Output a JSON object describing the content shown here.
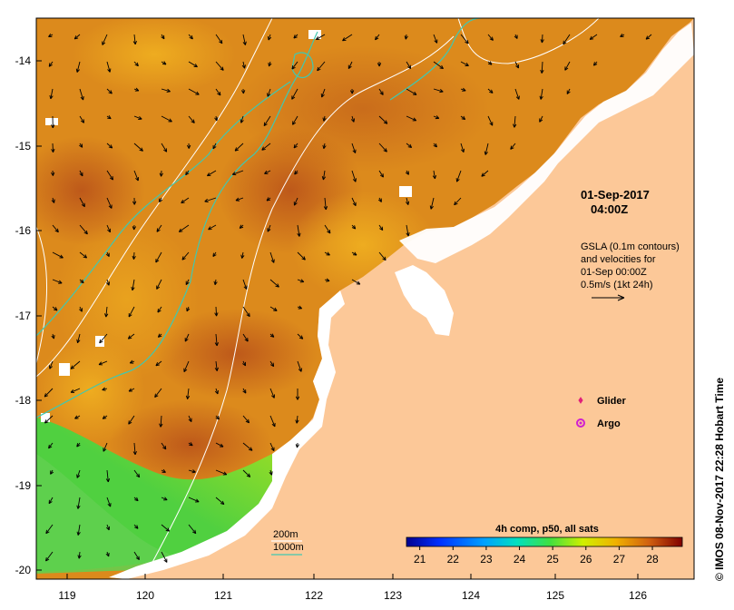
{
  "map": {
    "y_axis_labels": [
      "-14",
      "-15",
      "-16",
      "-17",
      "-18",
      "-19",
      "-20"
    ],
    "x_axis_labels": [
      "119",
      "120",
      "121",
      "122",
      "123",
      "124",
      "125",
      "126"
    ],
    "date_label": "01-Sep-2017",
    "time_label": "04:00Z",
    "gsla_lines": [
      "GSLA (0.1m contours)",
      "and velocities for",
      "01-Sep 00:00Z",
      "0.5m/s (1kt 24h)"
    ],
    "legend": {
      "glider_label": "Glider",
      "argo_label": "Argo",
      "glider_color": "#e0207a",
      "argo_color": "#d020d0"
    },
    "depth_legend": {
      "line_200_label": "200m",
      "line_1000_label": "1000m",
      "line_200_color": "#ffffff",
      "line_1000_color": "#40c8b0"
    },
    "colorbar": {
      "title": "4h comp, p50, all sats",
      "ticks": [
        "21",
        "22",
        "23",
        "24",
        "25",
        "26",
        "27",
        "28"
      ],
      "min": 20.6,
      "max": 28.9
    },
    "credit": "© IMOS 08-Nov-2017 22:28 Hobart Time",
    "land_color": "#fcc898",
    "velocity_arrow_count_note": ""
  }
}
